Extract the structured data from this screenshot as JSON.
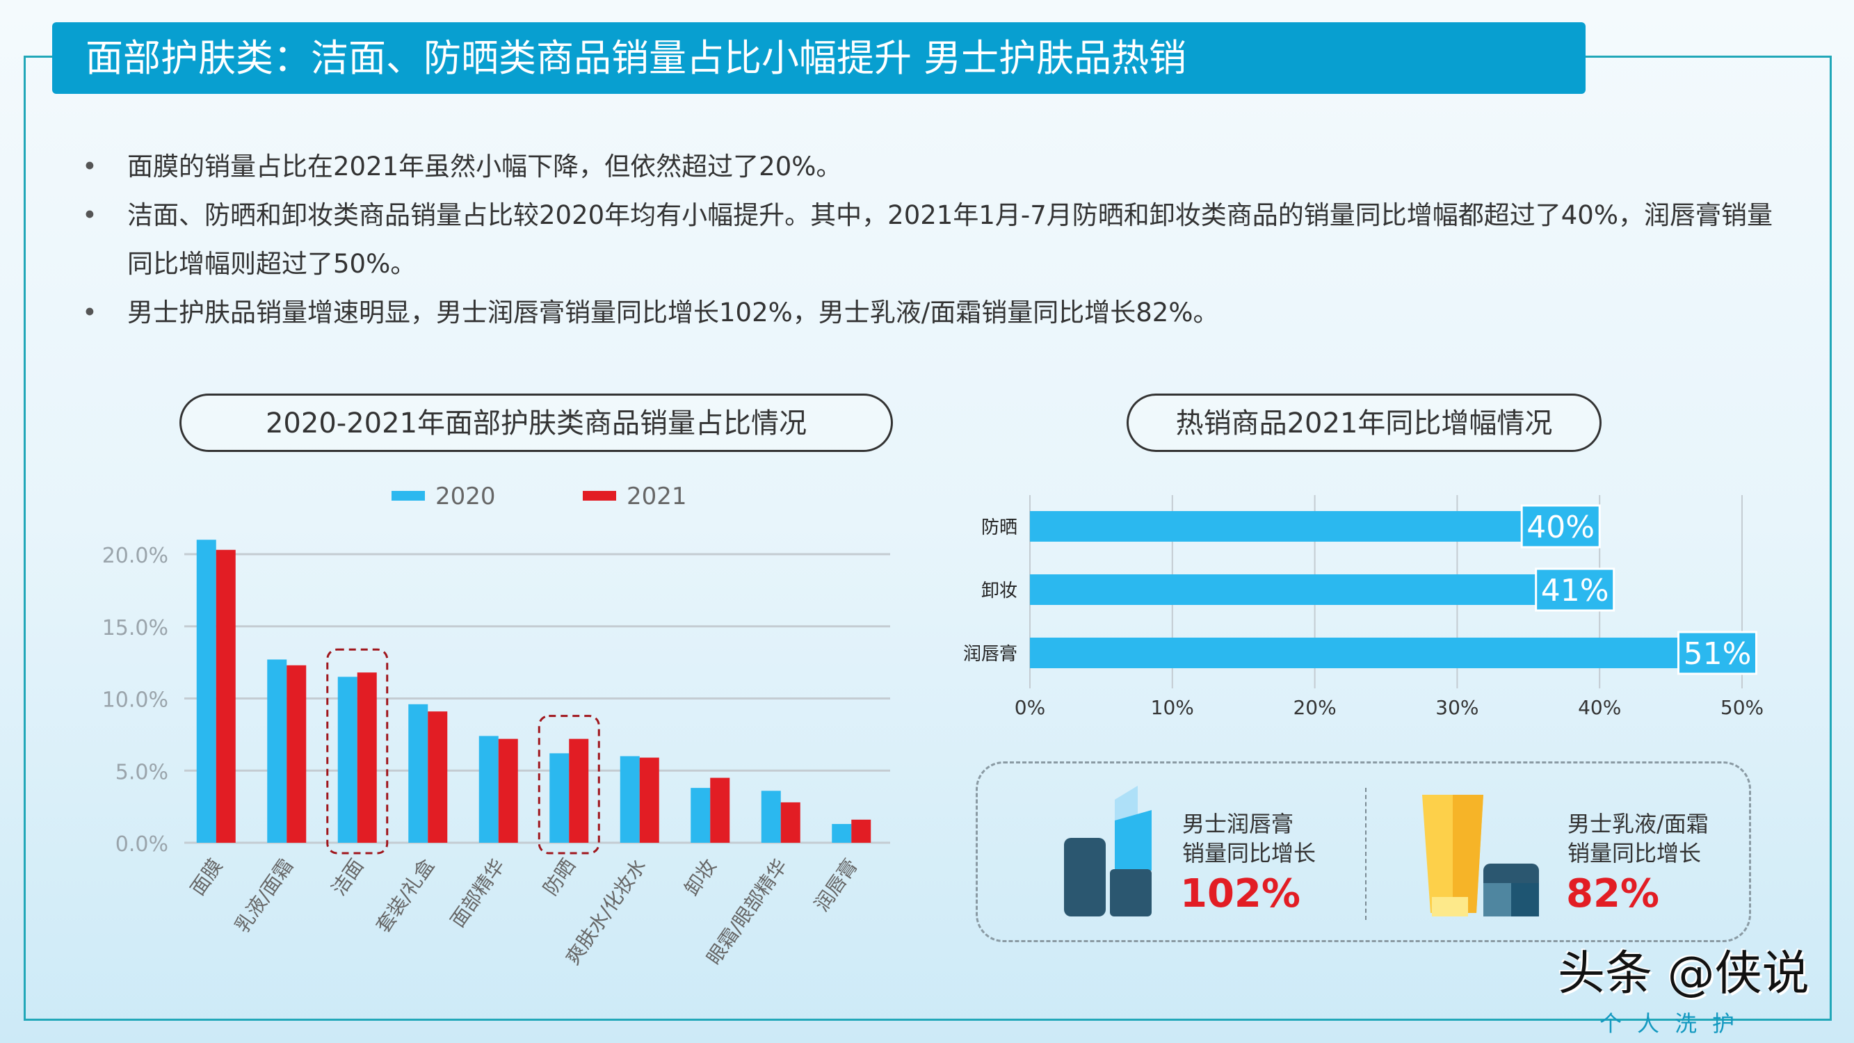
{
  "title": "面部护肤类：洁面、防晒类商品销量占比小幅提升 男士护肤品热销",
  "bullets": [
    "面膜的销量占比在2021年虽然小幅下降，但依然超过了20%。",
    "洁面、防晒和卸妆类商品销量占比较2020年均有小幅提升。其中，2021年1月-7月防晒和卸妆类商品的销量同比增幅都超过了40%，润唇膏销量同比增幅则超过了50%。",
    "男士护肤品销量增速明显，男士润唇膏销量同比增长102%，男士乳液/面霜销量同比增长82%。"
  ],
  "chart_data": [
    {
      "type": "bar",
      "title": "2020-2021年面部护肤类商品销量占比情况",
      "categories": [
        "面膜",
        "乳液/面霜",
        "洁面",
        "套装/礼盒",
        "面部精华",
        "防晒",
        "爽肤水/化妆水",
        "卸妆",
        "眼霜/眼部精华",
        "润唇膏"
      ],
      "series": [
        {
          "name": "2020",
          "color": "#2bb8ef",
          "values": [
            21.0,
            12.7,
            11.5,
            9.6,
            7.4,
            6.2,
            6.0,
            3.8,
            3.6,
            1.3
          ]
        },
        {
          "name": "2021",
          "color": "#e21d24",
          "values": [
            20.3,
            12.3,
            11.8,
            9.1,
            7.2,
            7.2,
            5.9,
            4.5,
            2.8,
            1.6
          ]
        }
      ],
      "yticks": [
        "0.0%",
        "5.0%",
        "10.0%",
        "15.0%",
        "20.0%"
      ],
      "ylim": [
        0,
        20
      ],
      "grid": true,
      "legend": "top",
      "highlighted": [
        "洁面",
        "防晒"
      ]
    },
    {
      "type": "bar",
      "orientation": "horizontal",
      "title": "热销商品2021年同比增幅情况",
      "categories": [
        "防晒",
        "卸妆",
        "润唇膏"
      ],
      "values": [
        40,
        41,
        51
      ],
      "labels": [
        "40%",
        "41%",
        "51%"
      ],
      "xticks": [
        "0%",
        "10%",
        "20%",
        "30%",
        "40%",
        "50%"
      ],
      "xlim": [
        0,
        50
      ],
      "color": "#2bb8ef",
      "grid": true
    }
  ],
  "men": [
    {
      "line1": "男士润唇膏",
      "line2": "销量同比增长",
      "pct": "102%"
    },
    {
      "line1": "男士乳液/面霜",
      "line2": "销量同比增长",
      "pct": "82%"
    }
  ],
  "watermark": {
    "main": "头条 @侠说",
    "sub": "个人洗护"
  }
}
